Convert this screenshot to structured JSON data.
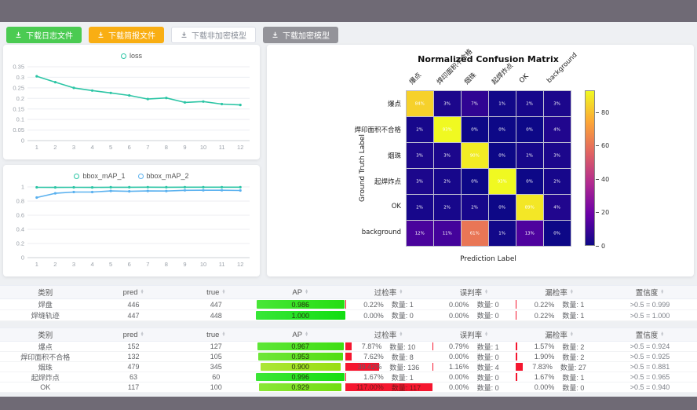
{
  "toolbar": {
    "buttons": [
      {
        "label": "下载日志文件",
        "variant": "green"
      },
      {
        "label": "下载简报文件",
        "variant": "orange"
      },
      {
        "label": "下载非加密模型",
        "variant": "plain"
      },
      {
        "label": "下载加密模型",
        "variant": "gray"
      }
    ]
  },
  "colors": {
    "teal": "#2cc5a5",
    "blue": "#5ab1ef",
    "red_bar": "#f5162f",
    "button_green": "#4bcb52",
    "button_orange": "#f9ae13"
  },
  "chart_data": [
    {
      "type": "line",
      "x": [
        "1",
        "2",
        "3",
        "4",
        "5",
        "6",
        "7",
        "8",
        "9",
        "10",
        "11",
        "12"
      ],
      "series": [
        {
          "name": "loss",
          "color": "#2cc5a5",
          "values": [
            0.305,
            0.277,
            0.25,
            0.237,
            0.226,
            0.214,
            0.197,
            0.202,
            0.181,
            0.185,
            0.173,
            0.169
          ]
        }
      ],
      "ylim": [
        0,
        0.35
      ],
      "yticks": [
        0,
        0.05,
        0.1,
        0.15,
        0.2,
        0.25,
        0.3,
        0.35
      ],
      "grid": true,
      "legend_position": "top"
    },
    {
      "type": "line",
      "x": [
        "1",
        "2",
        "3",
        "4",
        "5",
        "6",
        "7",
        "8",
        "9",
        "10",
        "11",
        "12"
      ],
      "series": [
        {
          "name": "bbox_mAP_1",
          "color": "#2cc5a5",
          "values": [
            0.995,
            0.993,
            0.995,
            0.993,
            0.996,
            0.996,
            0.997,
            0.996,
            0.997,
            0.997,
            0.997,
            0.997
          ]
        },
        {
          "name": "bbox_mAP_2",
          "color": "#5ab1ef",
          "values": [
            0.85,
            0.91,
            0.928,
            0.928,
            0.943,
            0.938,
            0.943,
            0.942,
            0.952,
            0.953,
            0.953,
            0.95
          ]
        }
      ],
      "ylim": [
        0,
        1
      ],
      "yticks": [
        0,
        0.2,
        0.4,
        0.6,
        0.8,
        1
      ],
      "grid": true,
      "legend_position": "top"
    },
    {
      "type": "heatmap",
      "title": "Normalized Confusion Matrix",
      "xlabel": "Prediction Label",
      "ylabel": "Ground Truth Label",
      "labels": [
        "爆点",
        "焊印面积不合格",
        "烟珠",
        "起焊炸点",
        "OK",
        "background"
      ],
      "values": [
        [
          84,
          3,
          7,
          1,
          2,
          3
        ],
        [
          2,
          93,
          0,
          0,
          0,
          4
        ],
        [
          3,
          3,
          90,
          0,
          2,
          3
        ],
        [
          3,
          2,
          0,
          93,
          0,
          2
        ],
        [
          2,
          2,
          2,
          0,
          89,
          4
        ],
        [
          12,
          11,
          61,
          1,
          13,
          0
        ]
      ],
      "unit": "%",
      "vmax": 93,
      "colorbar_ticks": [
        0,
        20,
        40,
        60,
        80
      ],
      "colormap": [
        "#0d0887",
        "#6a00a8",
        "#b12a90",
        "#e16462",
        "#fca636",
        "#f0f921"
      ]
    }
  ],
  "tables": [
    {
      "headers": [
        "类别",
        "pred",
        "true",
        "AP",
        "过检率",
        "误判率",
        "漏检率",
        "置信度"
      ],
      "sortable": [
        false,
        true,
        true,
        true,
        true,
        true,
        true,
        true
      ],
      "rows": [
        {
          "name": "焊盘",
          "pred": "446",
          "true": "447",
          "ap": 0.986,
          "ap_label": "0.986",
          "overkill": {
            "rate": "0.22%",
            "count": "数量: 1",
            "bar": 0.22
          },
          "misjudge": {
            "rate": "0.00%",
            "count": "数量: 0",
            "bar": 0
          },
          "miss": {
            "rate": "0.22%",
            "count": "数量: 1",
            "bar": 0.22
          },
          "confidence": ">0.5 = 0.999"
        },
        {
          "name": "焊缝轨迹",
          "pred": "447",
          "true": "448",
          "ap": 1.0,
          "ap_label": "1.000",
          "overkill": {
            "rate": "0.00%",
            "count": "数量: 0",
            "bar": 0
          },
          "misjudge": {
            "rate": "0.00%",
            "count": "数量: 0",
            "bar": 0
          },
          "miss": {
            "rate": "0.22%",
            "count": "数量: 1",
            "bar": 0.22
          },
          "confidence": ">0.5 = 1.000"
        }
      ]
    },
    {
      "headers": [
        "类别",
        "pred",
        "true",
        "AP",
        "过检率",
        "误判率",
        "漏检率",
        "置信度"
      ],
      "sortable": [
        false,
        true,
        true,
        true,
        true,
        true,
        true,
        true
      ],
      "rows": [
        {
          "name": "爆点",
          "pred": "152",
          "true": "127",
          "ap": 0.967,
          "ap_label": "0.967",
          "overkill": {
            "rate": "7.87%",
            "count": "数量: 10",
            "bar": 7.87
          },
          "misjudge": {
            "rate": "0.79%",
            "count": "数量: 1",
            "bar": 0.79
          },
          "miss": {
            "rate": "1.57%",
            "count": "数量: 2",
            "bar": 1.57
          },
          "confidence": ">0.5 = 0.924"
        },
        {
          "name": "焊印面积不合格",
          "pred": "132",
          "true": "105",
          "ap": 0.953,
          "ap_label": "0.953",
          "overkill": {
            "rate": "7.62%",
            "count": "数量: 8",
            "bar": 7.62
          },
          "misjudge": {
            "rate": "0.00%",
            "count": "数量: 0",
            "bar": 0
          },
          "miss": {
            "rate": "1.90%",
            "count": "数量: 2",
            "bar": 1.9
          },
          "confidence": ">0.5 = 0.925"
        },
        {
          "name": "烟珠",
          "pred": "479",
          "true": "345",
          "ap": 0.9,
          "ap_label": "0.900",
          "overkill": {
            "rate": "39.42%",
            "count": "数量: 136",
            "bar": 39.42
          },
          "misjudge": {
            "rate": "1.16%",
            "count": "数量: 4",
            "bar": 1.16
          },
          "miss": {
            "rate": "7.83%",
            "count": "数量: 27",
            "bar": 7.83
          },
          "confidence": ">0.5 = 0.881"
        },
        {
          "name": "起焊炸点",
          "pred": "63",
          "true": "60",
          "ap": 0.996,
          "ap_label": "0.996",
          "overkill": {
            "rate": "1.67%",
            "count": "数量: 1",
            "bar": 1.67
          },
          "misjudge": {
            "rate": "0.00%",
            "count": "数量: 0",
            "bar": 0
          },
          "miss": {
            "rate": "1.67%",
            "count": "数量: 1",
            "bar": 1.67
          },
          "confidence": ">0.5 = 0.965"
        },
        {
          "name": "OK",
          "pred": "117",
          "true": "100",
          "ap": 0.929,
          "ap_label": "0.929",
          "overkill": {
            "rate": "117.00%",
            "count": "数量: 117",
            "bar": 117
          },
          "misjudge": {
            "rate": "0.00%",
            "count": "数量: 0",
            "bar": 0
          },
          "miss": {
            "rate": "0.00%",
            "count": "数量: 0",
            "bar": 0
          },
          "confidence": ">0.5 = 0.940"
        }
      ]
    }
  ]
}
